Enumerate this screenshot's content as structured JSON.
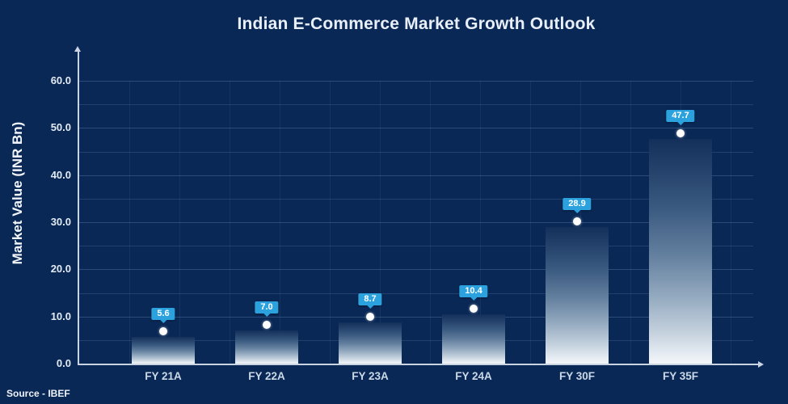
{
  "chart_data": {
    "type": "bar",
    "title": "Indian E-Commerce Market Growth Outlook",
    "ylabel": "Market Value (INR Bn)",
    "source": "Source - IBEF",
    "categories": [
      "FY 21A",
      "FY 22A",
      "FY 23A",
      "FY 24A",
      "FY 30F",
      "FY 35F"
    ],
    "values": [
      5.6,
      7.0,
      8.7,
      10.4,
      28.9,
      47.7
    ],
    "value_labels": [
      "5.6",
      "7.0",
      "8.7",
      "10.4",
      "28.9",
      "47.7"
    ],
    "yticks": [
      0,
      10,
      20,
      30,
      40,
      50,
      60
    ],
    "ytick_labels": [
      "0.0",
      "10.0",
      "20.0",
      "30.0",
      "40.0",
      "50.0",
      "60.0"
    ],
    "ylim": [
      0,
      60
    ],
    "grid": {
      "horizontal_interval": 5,
      "vertical": "faint",
      "legend": "none"
    },
    "colors": {
      "background": "#0a2856",
      "title_text": "#e8eff8",
      "axis": "#c9d4e3",
      "tick_text": "#e3ebf5",
      "category_text": "#cbd8e8",
      "gridline": "#8fb0d8",
      "callout_bg": "#2ba2de",
      "callout_text": "#ffffff",
      "marker": "#ffffff",
      "bar_gradient_top": "#12305a",
      "bar_gradient_bottom": "#f4f7fb"
    }
  }
}
